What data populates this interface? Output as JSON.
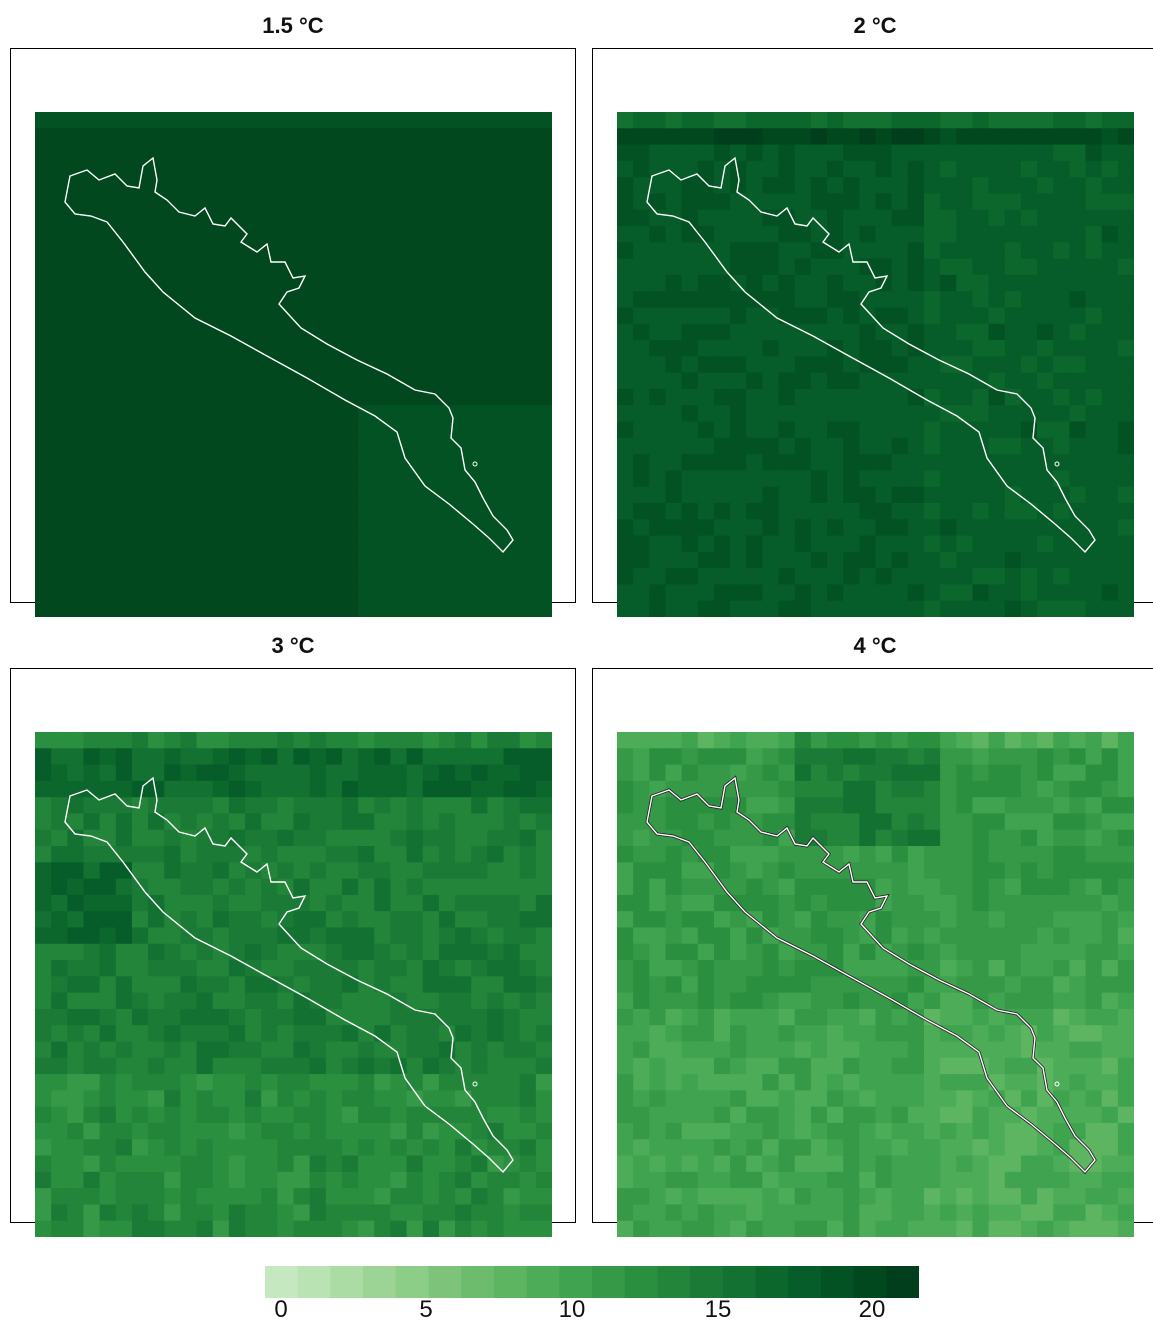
{
  "panels": [
    {
      "title": "1.5 °C",
      "level": 20.5
    },
    {
      "title": "2 °C",
      "level": 18.5
    },
    {
      "title": "3 °C",
      "level": 14.5
    },
    {
      "title": "4 °C",
      "level": 11.5
    }
  ],
  "colorbar": {
    "ticks": [
      "0",
      "5",
      "10",
      "15",
      "20"
    ],
    "min": -0.5,
    "max": 22,
    "colors": [
      "#c6e8c0",
      "#b9e3b2",
      "#aadca4",
      "#9bd495",
      "#8ccd88",
      "#7dc47a",
      "#6dbc6d",
      "#5db562",
      "#4dac58",
      "#40a34f",
      "#359947",
      "#2b8f40",
      "#23853a",
      "#1b7a35",
      "#137131",
      "#0c672d",
      "#065d29",
      "#035224",
      "#02481f",
      "#013e1b"
    ],
    "outline_color": "#ffffff"
  }
}
